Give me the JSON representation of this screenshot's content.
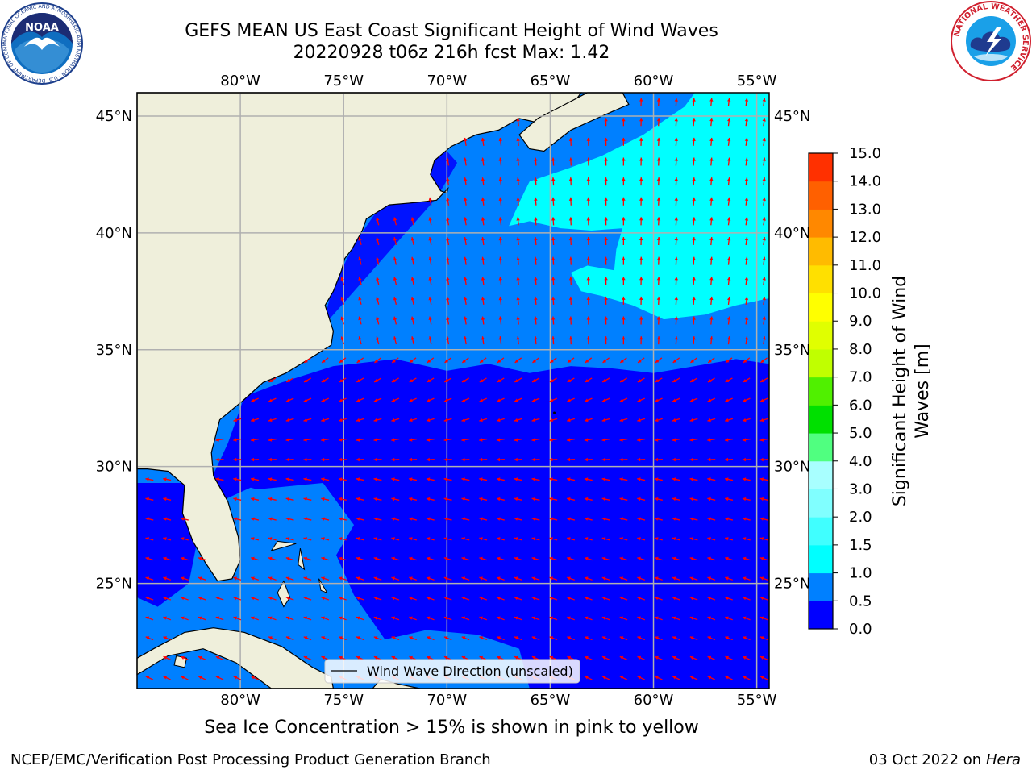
{
  "title": {
    "line1": "GEFS MEAN US East Coast Significant Height of Wind Waves",
    "line2": "20220928 t06z 216h fcst   Max: 1.42"
  },
  "map": {
    "lon_range": [
      -85,
      -54.4
    ],
    "lat_range": [
      20.5,
      46
    ],
    "lon_ticks": [
      "80°W",
      "75°W",
      "70°W",
      "65°W",
      "60°W",
      "55°W"
    ],
    "lon_tick_values": [
      -80,
      -75,
      -70,
      -65,
      -60,
      -55
    ],
    "lat_ticks": [
      "45°N",
      "40°N",
      "35°N",
      "30°N",
      "25°N"
    ],
    "lat_tick_values": [
      45,
      40,
      35,
      30,
      25
    ],
    "grid": true,
    "land_color": "#efefdb",
    "gridline_color": "#b0b0b0",
    "arrow_color": "#ff0000",
    "legend_label": "Wind Wave Direction (unscaled)"
  },
  "colorbar": {
    "label_line1": "Significant Height of Wind",
    "label_line2": "Waves [m]",
    "ticks": [
      "0.0",
      "0.5",
      "1.0",
      "1.5",
      "2.0",
      "3.0",
      "4.0",
      "5.0",
      "6.0",
      "7.0",
      "8.0",
      "9.0",
      "10.0",
      "11.0",
      "12.0",
      "13.0",
      "14.0",
      "15.0"
    ],
    "colors": [
      "#0000ff",
      "#0080ff",
      "#00ffff",
      "#40ffff",
      "#80ffff",
      "#a8ffff",
      "#50ff80",
      "#00e000",
      "#50f000",
      "#c0ff00",
      "#e0ff00",
      "#ffff00",
      "#ffe000",
      "#ffbb00",
      "#ff8800",
      "#ff6000",
      "#ff3000",
      "#ff0000"
    ]
  },
  "note": "Sea Ice Concentration > 15% is shown in pink to yellow",
  "footer": {
    "left": "NCEP/EMC/Verification Post Processing Product Generation Branch",
    "right_date": "03 Oct 2022 on",
    "right_host": "Hera"
  },
  "logos": {
    "noaa": "NOAA",
    "noaa_ring": "NATIONAL OCEANIC AND ATMOSPHERIC ADMINISTRATION · U.S. DEPARTMENT OF COMMERCE",
    "nws_ring": "NATIONAL WEATHER SERVICE"
  }
}
